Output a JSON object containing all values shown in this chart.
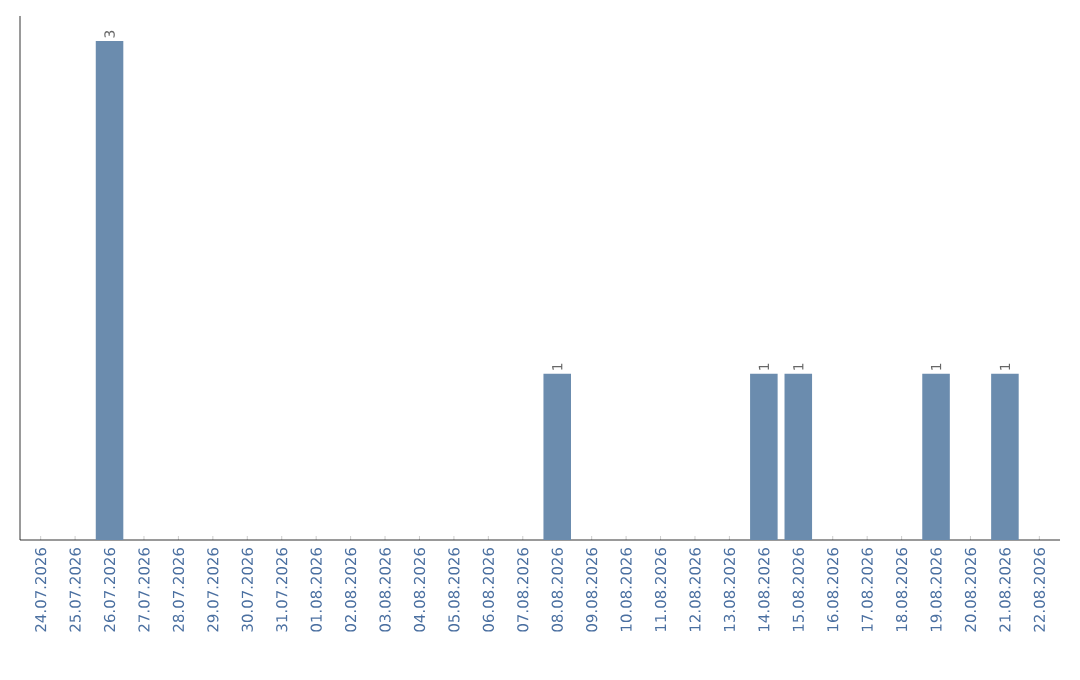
{
  "chart_data": {
    "type": "bar",
    "categories": [
      "24.07.2026",
      "25.07.2026",
      "26.07.2026",
      "27.07.2026",
      "28.07.2026",
      "29.07.2026",
      "30.07.2026",
      "31.07.2026",
      "01.08.2026",
      "02.08.2026",
      "03.08.2026",
      "04.08.2026",
      "05.08.2026",
      "06.08.2026",
      "07.08.2026",
      "08.08.2026",
      "09.08.2026",
      "10.08.2026",
      "11.08.2026",
      "12.08.2026",
      "13.08.2026",
      "14.08.2026",
      "15.08.2026",
      "16.08.2026",
      "17.08.2026",
      "18.08.2026",
      "19.08.2026",
      "20.08.2026",
      "21.08.2026",
      "22.08.2026"
    ],
    "values": [
      0,
      0,
      3,
      0,
      0,
      0,
      0,
      0,
      0,
      0,
      0,
      0,
      0,
      0,
      0,
      1,
      0,
      0,
      0,
      0,
      0,
      1,
      1,
      0,
      0,
      0,
      1,
      0,
      1,
      0
    ],
    "value_labels": [
      null,
      null,
      "3",
      null,
      null,
      null,
      null,
      null,
      null,
      null,
      null,
      null,
      null,
      null,
      null,
      "1",
      null,
      null,
      null,
      null,
      null,
      "1",
      "1",
      null,
      null,
      null,
      "1",
      null,
      "1",
      null
    ],
    "color": "#6b8cae",
    "ylim": [
      0,
      3.15
    ],
    "tick_labels": "x"
  }
}
